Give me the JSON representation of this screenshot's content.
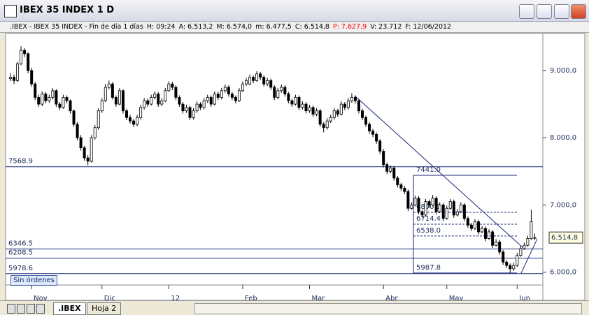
{
  "window": {
    "title": "IBEX 35 INDEX 1 D"
  },
  "info_bar": [
    ".IBEX - IBEX 35 INDEX - Fin de día 1 días",
    "H: 09:24",
    "A: 6.513,2",
    "M: 6.574,0",
    "m: 6.477,5",
    "C: 6.514,8",
    {
      "text": "P: 7.627,9",
      "color": "#ff0000"
    },
    "V: 23.712",
    "F: 12/06/2012"
  ],
  "orders_button": "Sin órdenes",
  "tabs": [
    ".IBEX",
    "Hoja 2"
  ],
  "chart_data": {
    "type": "candlestick",
    "up_color": "#ffffff",
    "down_color": "#000000",
    "ylim": [
      5810,
      9550
    ],
    "yticks": [
      {
        "value": 9000,
        "label": "9.000,0"
      },
      {
        "value": 8000,
        "label": "8.000,0"
      },
      {
        "value": 7000,
        "label": "7.000,0"
      },
      {
        "value": 6000,
        "label": "6.000,0"
      }
    ],
    "last_price": {
      "value": 6514.8,
      "label": "6.514,8"
    },
    "h_lines": [
      7568.9,
      6346.5,
      6208.5,
      5978.6
    ],
    "fib_levels": [
      {
        "value": 7441,
        "label": "7441.0"
      },
      6890.1,
      6714.4,
      {
        "value": 6538,
        "label": "6538.0"
      },
      5987.8
    ],
    "categories": [
      null,
      null,
      null,
      null,
      null,
      null,
      "Nov",
      null,
      null,
      null,
      null,
      null,
      null,
      null,
      null,
      null,
      null,
      null,
      null,
      null,
      null,
      null,
      null,
      null,
      null,
      null,
      "Dic",
      null,
      null,
      null,
      null,
      null,
      null,
      null,
      null,
      null,
      null,
      null,
      null,
      null,
      null,
      null,
      null,
      null,
      null,
      "12",
      null,
      null,
      null,
      null,
      null,
      null,
      null,
      null,
      null,
      null,
      null,
      null,
      null,
      null,
      null,
      null,
      null,
      null,
      null,
      null,
      "Feb",
      null,
      null,
      null,
      null,
      null,
      null,
      null,
      null,
      null,
      null,
      null,
      null,
      null,
      null,
      null,
      null,
      null,
      null,
      "Mar",
      null,
      null,
      null,
      null,
      null,
      null,
      null,
      null,
      null,
      null,
      null,
      null,
      null,
      null,
      null,
      null,
      null,
      null,
      null,
      null,
      "Abr",
      null,
      null,
      null,
      null,
      null,
      null,
      null,
      null,
      null,
      null,
      null,
      null,
      null,
      null,
      null,
      null,
      null,
      "May",
      null,
      null,
      null,
      null,
      null,
      null,
      null,
      null,
      null,
      null,
      null,
      null,
      null,
      null,
      null,
      null,
      null,
      null,
      null,
      "Jun",
      null,
      null,
      null,
      null,
      null
    ],
    "ohlc": [
      [
        8880,
        8960,
        8840,
        8900
      ],
      [
        8900,
        8940,
        8800,
        8850
      ],
      [
        8850,
        9130,
        8830,
        9100
      ],
      [
        9100,
        9360,
        9080,
        9300
      ],
      [
        9300,
        9330,
        9200,
        9250
      ],
      [
        9250,
        9270,
        8960,
        9000
      ],
      [
        9000,
        9040,
        8760,
        8800
      ],
      [
        8800,
        8830,
        8560,
        8600
      ],
      [
        8600,
        8640,
        8460,
        8500
      ],
      [
        8500,
        8690,
        8470,
        8650
      ],
      [
        8650,
        8680,
        8510,
        8550
      ],
      [
        8550,
        8640,
        8520,
        8600
      ],
      [
        8600,
        8740,
        8570,
        8700
      ],
      [
        8700,
        8720,
        8460,
        8500
      ],
      [
        8500,
        8530,
        8410,
        8450
      ],
      [
        8450,
        8640,
        8430,
        8600
      ],
      [
        8600,
        8630,
        8510,
        8550
      ],
      [
        8550,
        8570,
        8360,
        8400
      ],
      [
        8400,
        8420,
        8160,
        8200
      ],
      [
        8200,
        8230,
        7960,
        8000
      ],
      [
        8000,
        8040,
        7810,
        7850
      ],
      [
        7850,
        7880,
        7660,
        7700
      ],
      [
        7700,
        7740,
        7590,
        7650
      ],
      [
        7650,
        8040,
        7630,
        8000
      ],
      [
        8000,
        8190,
        7970,
        8150
      ],
      [
        8150,
        8440,
        8120,
        8400
      ],
      [
        8400,
        8590,
        8370,
        8550
      ],
      [
        8550,
        8800,
        8530,
        8750
      ],
      [
        8750,
        8850,
        8720,
        8800
      ],
      [
        8800,
        8830,
        8570,
        8600
      ],
      [
        8600,
        8630,
        8460,
        8500
      ],
      [
        8500,
        8740,
        8480,
        8700
      ],
      [
        8700,
        8720,
        8360,
        8400
      ],
      [
        8400,
        8430,
        8260,
        8300
      ],
      [
        8300,
        8340,
        8210,
        8250
      ],
      [
        8250,
        8280,
        8160,
        8200
      ],
      [
        8200,
        8340,
        8170,
        8300
      ],
      [
        8300,
        8490,
        8270,
        8450
      ],
      [
        8450,
        8590,
        8420,
        8550
      ],
      [
        8550,
        8580,
        8460,
        8500
      ],
      [
        8500,
        8640,
        8480,
        8600
      ],
      [
        8600,
        8690,
        8570,
        8650
      ],
      [
        8650,
        8680,
        8460,
        8500
      ],
      [
        8500,
        8590,
        8470,
        8550
      ],
      [
        8550,
        8740,
        8530,
        8700
      ],
      [
        8700,
        8840,
        8680,
        8800
      ],
      [
        8800,
        8830,
        8710,
        8750
      ],
      [
        8750,
        8780,
        8560,
        8600
      ],
      [
        8600,
        8630,
        8460,
        8500
      ],
      [
        8500,
        8530,
        8360,
        8400
      ],
      [
        8400,
        8490,
        8370,
        8450
      ],
      [
        8450,
        8480,
        8260,
        8300
      ],
      [
        8300,
        8440,
        8270,
        8400
      ],
      [
        8400,
        8540,
        8370,
        8500
      ],
      [
        8500,
        8530,
        8410,
        8450
      ],
      [
        8450,
        8590,
        8420,
        8550
      ],
      [
        8550,
        8640,
        8520,
        8600
      ],
      [
        8600,
        8630,
        8460,
        8500
      ],
      [
        8500,
        8690,
        8480,
        8650
      ],
      [
        8650,
        8680,
        8560,
        8600
      ],
      [
        8600,
        8740,
        8570,
        8700
      ],
      [
        8700,
        8790,
        8670,
        8750
      ],
      [
        8750,
        8780,
        8610,
        8650
      ],
      [
        8650,
        8680,
        8560,
        8600
      ],
      [
        8600,
        8630,
        8510,
        8550
      ],
      [
        8550,
        8740,
        8530,
        8700
      ],
      [
        8700,
        8840,
        8680,
        8800
      ],
      [
        8800,
        8890,
        8770,
        8850
      ],
      [
        8800,
        8940,
        8780,
        8900
      ],
      [
        8900,
        8930,
        8810,
        8850
      ],
      [
        8850,
        8990,
        8830,
        8950
      ],
      [
        8950,
        8980,
        8860,
        8900
      ],
      [
        8900,
        8930,
        8760,
        8800
      ],
      [
        8800,
        8890,
        8770,
        8850
      ],
      [
        8850,
        8880,
        8710,
        8750
      ],
      [
        8750,
        8780,
        8560,
        8600
      ],
      [
        8600,
        8740,
        8570,
        8700
      ],
      [
        8700,
        8790,
        8670,
        8750
      ],
      [
        8750,
        8780,
        8610,
        8650
      ],
      [
        8650,
        8680,
        8510,
        8550
      ],
      [
        8550,
        8580,
        8460,
        8500
      ],
      [
        8500,
        8640,
        8480,
        8600
      ],
      [
        8600,
        8630,
        8410,
        8450
      ],
      [
        8450,
        8540,
        8420,
        8500
      ],
      [
        8500,
        8530,
        8360,
        8400
      ],
      [
        8400,
        8490,
        8370,
        8450
      ],
      [
        8450,
        8480,
        8310,
        8350
      ],
      [
        8350,
        8440,
        8320,
        8400
      ],
      [
        8400,
        8430,
        8160,
        8200
      ],
      [
        8200,
        8230,
        8080,
        8150
      ],
      [
        8150,
        8290,
        8120,
        8250
      ],
      [
        8250,
        8340,
        8220,
        8300
      ],
      [
        8300,
        8440,
        8270,
        8400
      ],
      [
        8400,
        8430,
        8310,
        8350
      ],
      [
        8350,
        8540,
        8330,
        8500
      ],
      [
        8500,
        8530,
        8410,
        8450
      ],
      [
        8450,
        8590,
        8420,
        8550
      ],
      [
        8550,
        8660,
        8520,
        8600
      ],
      [
        8600,
        8630,
        8510,
        8550
      ],
      [
        8550,
        8580,
        8360,
        8400
      ],
      [
        8400,
        8430,
        8260,
        8300
      ],
      [
        8300,
        8330,
        8160,
        8200
      ],
      [
        8200,
        8230,
        8060,
        8100
      ],
      [
        8100,
        8130,
        8010,
        8050
      ],
      [
        8050,
        8080,
        7910,
        7950
      ],
      [
        7950,
        7980,
        7760,
        7800
      ],
      [
        7800,
        7830,
        7560,
        7600
      ],
      [
        7600,
        7630,
        7460,
        7500
      ],
      [
        7500,
        7590,
        7470,
        7550
      ],
      [
        7550,
        7580,
        7360,
        7400
      ],
      [
        7400,
        7430,
        7260,
        7300
      ],
      [
        7300,
        7330,
        7210,
        7250
      ],
      [
        7250,
        7280,
        7160,
        7200
      ],
      [
        7200,
        7230,
        6910,
        6950
      ],
      [
        6950,
        7040,
        6930,
        7000
      ],
      [
        7000,
        7140,
        6980,
        7100
      ],
      [
        7100,
        7130,
        6860,
        6900
      ],
      [
        6900,
        6930,
        6810,
        6850
      ],
      [
        6850,
        7090,
        6830,
        7050
      ],
      [
        7050,
        7080,
        6960,
        7000
      ],
      [
        7000,
        7150,
        6980,
        7100
      ],
      [
        7100,
        7130,
        6860,
        6900
      ],
      [
        6900,
        7040,
        6880,
        7000
      ],
      [
        7000,
        7030,
        6760,
        6800
      ],
      [
        6800,
        6990,
        6780,
        6950
      ],
      [
        6950,
        7090,
        6930,
        7050
      ],
      [
        7050,
        7080,
        6810,
        6850
      ],
      [
        6850,
        6940,
        6830,
        6900
      ],
      [
        6900,
        7040,
        6880,
        7000
      ],
      [
        7000,
        7030,
        6760,
        6800
      ],
      [
        6800,
        6830,
        6660,
        6700
      ],
      [
        6700,
        6730,
        6610,
        6650
      ],
      [
        6650,
        6790,
        6630,
        6750
      ],
      [
        6750,
        6780,
        6560,
        6600
      ],
      [
        6600,
        6690,
        6580,
        6650
      ],
      [
        6650,
        6680,
        6460,
        6500
      ],
      [
        6500,
        6640,
        6480,
        6600
      ],
      [
        6600,
        6630,
        6360,
        6400
      ],
      [
        6400,
        6490,
        6380,
        6450
      ],
      [
        6450,
        6480,
        6260,
        6300
      ],
      [
        6300,
        6330,
        6110,
        6150
      ],
      [
        6150,
        6180,
        6060,
        6100
      ],
      [
        6100,
        6130,
        5990,
        6050
      ],
      [
        6050,
        6140,
        6020,
        6100
      ],
      [
        6100,
        6290,
        6080,
        6250
      ],
      [
        6250,
        6390,
        6230,
        6350
      ],
      [
        6350,
        6440,
        6330,
        6400
      ],
      [
        6400,
        6540,
        6380,
        6500
      ],
      [
        6500,
        6930,
        6480,
        6750
      ],
      [
        6513.2,
        6574.0,
        6477.5,
        6514.8
      ]
    ]
  }
}
